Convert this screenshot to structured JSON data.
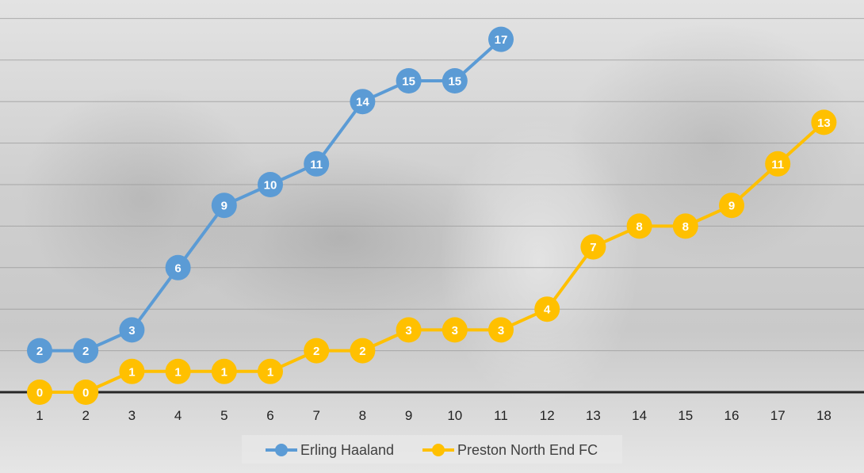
{
  "chart_data": {
    "type": "line",
    "title": "",
    "xlabel": "",
    "ylabel": "",
    "x": [
      1,
      2,
      3,
      4,
      5,
      6,
      7,
      8,
      9,
      10,
      11,
      12,
      13,
      14,
      15,
      16,
      17,
      18
    ],
    "ylim": [
      0,
      18
    ],
    "grid": true,
    "legend": "bottom",
    "series": [
      {
        "name": "Erling Haaland",
        "color": "#5b9bd5",
        "values": [
          2,
          2,
          3,
          6,
          9,
          10,
          11,
          14,
          15,
          15,
          17,
          null,
          null,
          null,
          null,
          null,
          null,
          null
        ]
      },
      {
        "name": "Preston North End FC",
        "color": "#ffc000",
        "values": [
          0,
          0,
          1,
          1,
          1,
          1,
          2,
          2,
          3,
          3,
          3,
          4,
          7,
          8,
          8,
          9,
          11,
          13
        ]
      }
    ]
  }
}
